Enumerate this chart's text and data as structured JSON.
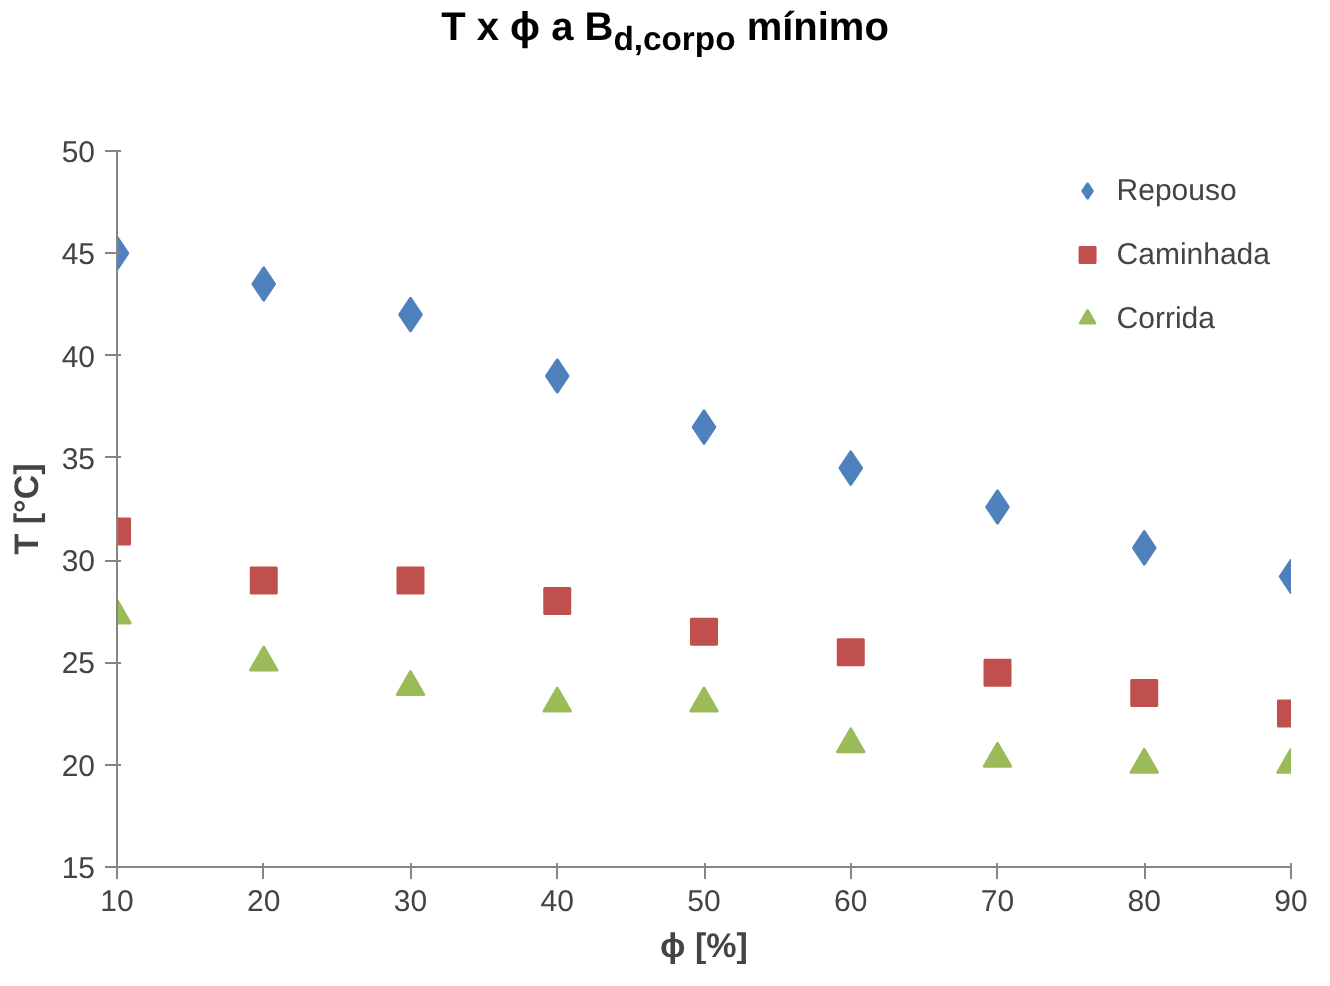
{
  "chart_data": {
    "type": "scatter",
    "title": "T x ϕ a B$_{d,corpo}$ mínimo",
    "xlabel": "ϕ [%]",
    "ylabel": "T [°C]",
    "x": [
      10,
      20,
      30,
      40,
      50,
      60,
      70,
      80,
      90
    ],
    "series": [
      {
        "name": "Repouso",
        "color": "#4f81bd",
        "marker": "diamond",
        "values": [
          45,
          43.5,
          42,
          39,
          36.5,
          34.5,
          32.6,
          30.6,
          29.2
        ]
      },
      {
        "name": "Caminhada",
        "color": "#c0504d",
        "marker": "square",
        "values": [
          31.4,
          29,
          29,
          28,
          26.5,
          25.5,
          24.5,
          23.5,
          22.5
        ]
      },
      {
        "name": "Corrida",
        "color": "#9bbb59",
        "marker": "triangle",
        "values": [
          27.3,
          25,
          23.8,
          23,
          23,
          21,
          20.3,
          20,
          20
        ]
      }
    ],
    "xlim": [
      10,
      90
    ],
    "xticks": [
      10,
      20,
      30,
      40,
      50,
      60,
      70,
      80,
      90
    ],
    "ylim": [
      15,
      50
    ],
    "yticks": [
      15,
      20,
      25,
      30,
      35,
      40,
      45,
      50
    ],
    "grid": false,
    "legend": "top right"
  }
}
